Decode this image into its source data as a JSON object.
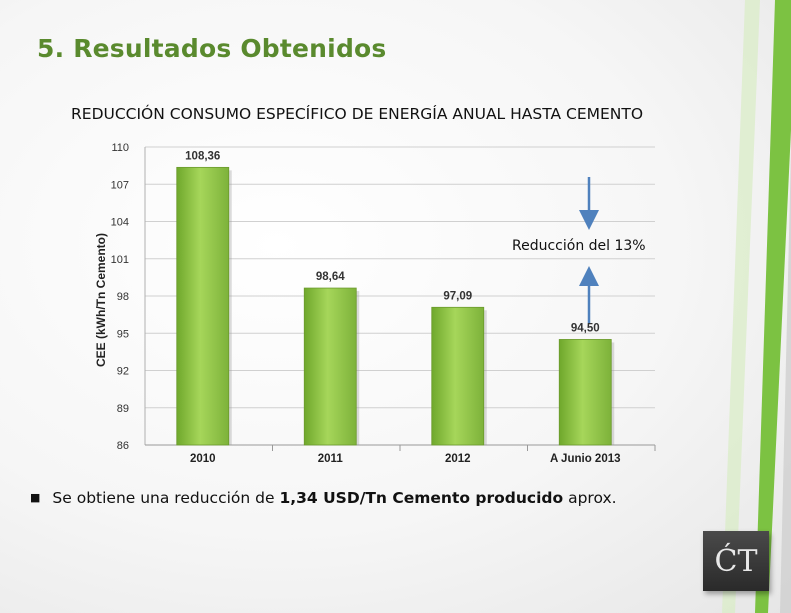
{
  "slide": {
    "title": "5. Resultados Obtenidos",
    "bullet_prefix": "Se obtiene una reducción de ",
    "bullet_bold_1": "1,34 USD/Tn Cemento producido",
    "bullet_suffix": " aprox.",
    "annotation": "Reducción del 13%",
    "logo_text": "ĆT",
    "colors": {
      "title": "#5a8a2e",
      "bar": "#8cc63f",
      "arrow": "#4f81bd",
      "accent_stripe": "#7cc242"
    }
  },
  "chart_data": {
    "type": "bar",
    "title": "REDUCCIÓN CONSUMO ESPECÍFICO DE ENERGÍA ANUAL HASTA CEMENTO",
    "ylabel": "CEE (kWh/Tn Cemento)",
    "xlabel": "",
    "categories": [
      "2010",
      "2011",
      "2012",
      "A  Junio 2013"
    ],
    "values": [
      108.36,
      98.64,
      97.09,
      94.5
    ],
    "value_labels": [
      "108,36",
      "98,64",
      "97,09",
      "94,50"
    ],
    "ylim": [
      86,
      110
    ],
    "yticks": [
      110,
      107,
      104,
      101,
      98,
      95,
      92,
      89,
      86
    ],
    "grid": true,
    "legend": "none"
  }
}
